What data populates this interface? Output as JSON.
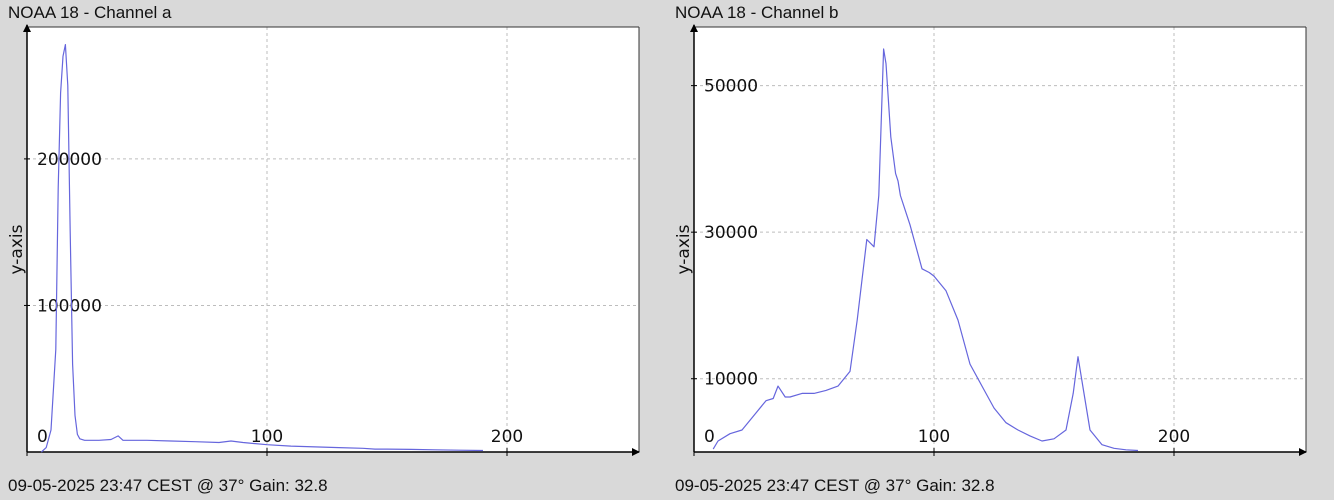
{
  "chart_data": [
    {
      "type": "line",
      "title": "NOAA 18 - Channel a",
      "footer": "09-05-2025 23:47 CEST @ 37° Gain: 32.8",
      "xlabel": "",
      "ylabel": "y-axis",
      "xlim": [
        0,
        255
      ],
      "ylim": [
        0,
        290000
      ],
      "x_ticks": [
        0,
        100,
        200
      ],
      "y_ticks": [
        100000,
        200000
      ],
      "grid": true,
      "series": [
        {
          "color": "#6666dd",
          "x": [
            6,
            8,
            10,
            12,
            13,
            14,
            15,
            16,
            17,
            18,
            19,
            20,
            21,
            22,
            24,
            26,
            30,
            35,
            38,
            40,
            50,
            60,
            70,
            80,
            85,
            90,
            100,
            110,
            120,
            130,
            140,
            145,
            150,
            160,
            170,
            180,
            190
          ],
          "y": [
            0,
            3000,
            15000,
            70000,
            180000,
            245000,
            270000,
            278000,
            250000,
            150000,
            60000,
            25000,
            12000,
            9000,
            8000,
            8000,
            8000,
            8500,
            11000,
            8000,
            8000,
            7500,
            7000,
            6500,
            7500,
            6500,
            5000,
            4000,
            3500,
            3000,
            2500,
            2000,
            2000,
            1800,
            1500,
            1200,
            1000
          ]
        }
      ]
    },
    {
      "type": "line",
      "title": "NOAA 18 - Channel b",
      "footer": "09-05-2025 23:47 CEST @ 37° Gain: 32.8",
      "xlabel": "",
      "ylabel": "y-axis",
      "xlim": [
        0,
        255
      ],
      "ylim": [
        0,
        58000
      ],
      "x_ticks": [
        0,
        100,
        200
      ],
      "y_ticks": [
        10000,
        30000,
        50000
      ],
      "grid": true,
      "series": [
        {
          "color": "#6666dd",
          "x": [
            8,
            10,
            15,
            20,
            25,
            30,
            33,
            35,
            38,
            40,
            45,
            50,
            55,
            60,
            65,
            68,
            72,
            75,
            77,
            78,
            79,
            80,
            82,
            84,
            85,
            86,
            88,
            90,
            95,
            98,
            100,
            105,
            110,
            115,
            120,
            125,
            130,
            135,
            140,
            145,
            150,
            155,
            158,
            160,
            162,
            165,
            170,
            175,
            180,
            185
          ],
          "y": [
            400,
            1500,
            2500,
            3000,
            5000,
            7000,
            7300,
            9000,
            7500,
            7500,
            8000,
            8000,
            8400,
            9000,
            11000,
            18000,
            29000,
            28000,
            35000,
            45000,
            55000,
            53000,
            43000,
            38000,
            37000,
            35000,
            33000,
            31000,
            25000,
            24500,
            24000,
            22000,
            18000,
            12000,
            9000,
            6000,
            4000,
            3000,
            2200,
            1500,
            1800,
            3000,
            8000,
            13000,
            9000,
            3000,
            1000,
            500,
            300,
            200
          ]
        }
      ]
    }
  ]
}
